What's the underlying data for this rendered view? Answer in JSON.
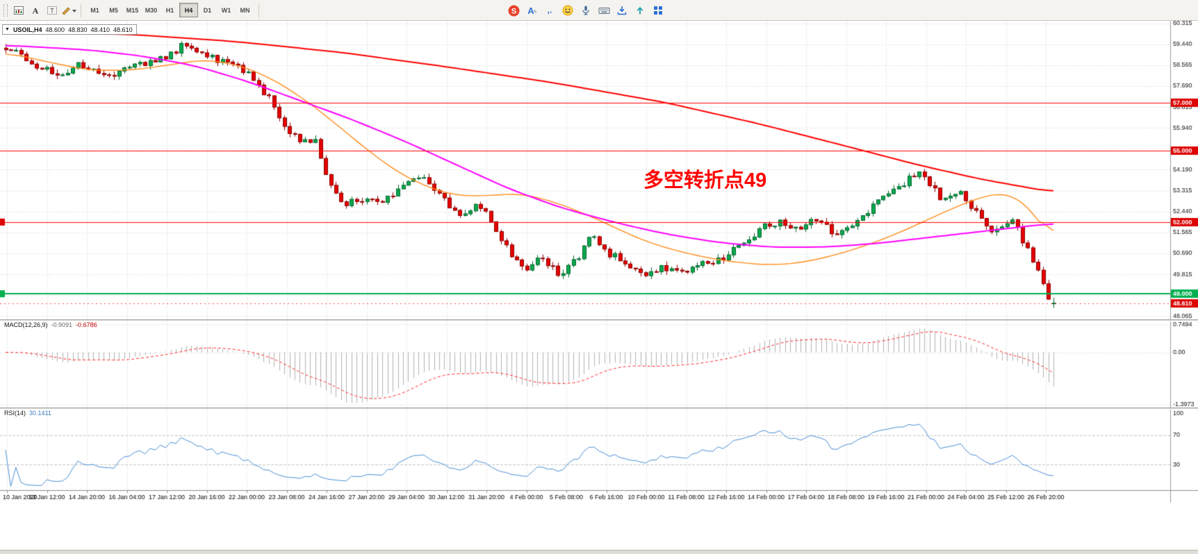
{
  "toolbar": {
    "left_icons": [
      {
        "name": "chart-window-icon"
      },
      {
        "name": "text-label-icon",
        "glyph": "A"
      },
      {
        "name": "text-box-icon",
        "glyph": "T"
      },
      {
        "name": "draw-tool-icon"
      }
    ],
    "timeframes": [
      {
        "label": "M1"
      },
      {
        "label": "M5"
      },
      {
        "label": "M15"
      },
      {
        "label": "M30"
      },
      {
        "label": "H1"
      },
      {
        "label": "H4",
        "active": true
      },
      {
        "label": "D1"
      },
      {
        "label": "W1"
      },
      {
        "label": "MN"
      }
    ],
    "ime_icons": [
      {
        "name": "ime-logo-icon",
        "glyph": "S"
      },
      {
        "name": "english-mode-icon",
        "glyph": "A"
      },
      {
        "name": "punctuation-icon",
        "glyph": ",."
      },
      {
        "name": "emoji-icon"
      },
      {
        "name": "voice-input-icon"
      },
      {
        "name": "soft-keyboard-icon"
      },
      {
        "name": "skin-download-icon"
      },
      {
        "name": "share-icon"
      },
      {
        "name": "toolbox-grid-icon"
      }
    ]
  },
  "symbol_info": {
    "collapse_glyph": "▼",
    "symbol": "USOIL,H4",
    "open": "48.600",
    "high": "48.830",
    "low": "48.410",
    "close": "48.610"
  },
  "colors": {
    "up": "#0ba94e",
    "up_border": "#03682e",
    "down": "#e60000",
    "down_border": "#8f0000",
    "grid": "#d7d7d7",
    "level_dash": "#c3c3c3",
    "scale_text": "#111111",
    "axis_border": "#8c8c8c",
    "tag_red": "#dd0202",
    "tag_green": "#00b050",
    "macd_hist": "#b2b2b2",
    "macd_signal": "#ff2a2a",
    "rsi_line": "#4a8fd6"
  },
  "chart_data": [
    {
      "type": "candlestick",
      "symbol": "USOIL",
      "timeframe": "H4",
      "title": "USOIL,H4",
      "annotation": "多空转折点49",
      "num_candles": 204,
      "last_candle": {
        "open": 48.6,
        "high": 48.83,
        "low": 48.41,
        "close": 48.61
      },
      "y_range": [
        47.93,
        60.42
      ],
      "y_ticks": [
        60.315,
        59.44,
        58.565,
        57.69,
        56.815,
        55.94,
        55.065,
        54.19,
        53.315,
        52.44,
        51.565,
        50.69,
        49.815,
        48.94,
        48.065
      ],
      "x_labels": [
        "10 Jan 2020",
        "13 Jan 12:00",
        "14 Jan 20:00",
        "16 Jan 04:00",
        "17 Jan 12:00",
        "20 Jan 16:00",
        "22 Jan 00:00",
        "23 Jan 08:00",
        "24 Jan 16:00",
        "27 Jan 20:00",
        "29 Jan 04:00",
        "30 Jan 12:00",
        "31 Jan 20:00",
        "4 Feb 00:00",
        "5 Feb 08:00",
        "6 Feb 16:00",
        "10 Feb 00:00",
        "11 Feb 08:00",
        "12 Feb 16:00",
        "14 Feb 00:00",
        "17 Feb 04:00",
        "18 Feb 08:00",
        "19 Feb 16:00",
        "21 Feb 00:00",
        "24 Feb 04:00",
        "25 Feb 12:00",
        "26 Feb 20:00"
      ],
      "price_path": [
        [
          0,
          59.3
        ],
        [
          0.016,
          58.95
        ],
        [
          0.036,
          58.35
        ],
        [
          0.056,
          58.25
        ],
        [
          0.069,
          58.55
        ],
        [
          0.089,
          58.35
        ],
        [
          0.102,
          58.1
        ],
        [
          0.118,
          58.6
        ],
        [
          0.138,
          58.7
        ],
        [
          0.155,
          59.0
        ],
        [
          0.168,
          59.35
        ],
        [
          0.185,
          59.05
        ],
        [
          0.201,
          58.8
        ],
        [
          0.214,
          58.55
        ],
        [
          0.231,
          58.3
        ],
        [
          0.244,
          57.6
        ],
        [
          0.257,
          56.8
        ],
        [
          0.271,
          55.7
        ],
        [
          0.284,
          55.3
        ],
        [
          0.294,
          55.55
        ],
        [
          0.304,
          54.3
        ],
        [
          0.313,
          53.2
        ],
        [
          0.323,
          52.75
        ],
        [
          0.337,
          52.9
        ],
        [
          0.347,
          53.05
        ],
        [
          0.36,
          52.9
        ],
        [
          0.373,
          53.3
        ],
        [
          0.386,
          53.6
        ],
        [
          0.396,
          53.9
        ],
        [
          0.406,
          53.5
        ],
        [
          0.419,
          52.9
        ],
        [
          0.429,
          52.4
        ],
        [
          0.439,
          52.3
        ],
        [
          0.449,
          52.8
        ],
        [
          0.459,
          52.3
        ],
        [
          0.469,
          51.5
        ],
        [
          0.479,
          50.9
        ],
        [
          0.489,
          50.3
        ],
        [
          0.499,
          50.1
        ],
        [
          0.509,
          50.6
        ],
        [
          0.519,
          50.2
        ],
        [
          0.528,
          49.8
        ],
        [
          0.538,
          50.1
        ],
        [
          0.548,
          50.6
        ],
        [
          0.558,
          51.4
        ],
        [
          0.566,
          51.1
        ],
        [
          0.575,
          50.7
        ],
        [
          0.585,
          50.5
        ],
        [
          0.595,
          50.2
        ],
        [
          0.605,
          49.9
        ],
        [
          0.615,
          49.8
        ],
        [
          0.624,
          50.2
        ],
        [
          0.634,
          50.0
        ],
        [
          0.644,
          49.8
        ],
        [
          0.654,
          50.0
        ],
        [
          0.664,
          50.3
        ],
        [
          0.674,
          50.2
        ],
        [
          0.684,
          50.5
        ],
        [
          0.694,
          50.8
        ],
        [
          0.704,
          51.1
        ],
        [
          0.714,
          51.4
        ],
        [
          0.723,
          51.8
        ],
        [
          0.733,
          51.9
        ],
        [
          0.743,
          52.0
        ],
        [
          0.753,
          51.7
        ],
        [
          0.763,
          51.9
        ],
        [
          0.773,
          52.1
        ],
        [
          0.783,
          51.8
        ],
        [
          0.793,
          51.5
        ],
        [
          0.803,
          51.8
        ],
        [
          0.813,
          52.1
        ],
        [
          0.823,
          52.5
        ],
        [
          0.833,
          52.9
        ],
        [
          0.843,
          53.2
        ],
        [
          0.852,
          53.5
        ],
        [
          0.862,
          53.8
        ],
        [
          0.872,
          54.1
        ],
        [
          0.882,
          53.6
        ],
        [
          0.892,
          53.0
        ],
        [
          0.902,
          53.2
        ],
        [
          0.912,
          53.35
        ],
        [
          0.922,
          52.6
        ],
        [
          0.932,
          52.1
        ],
        [
          0.942,
          51.6
        ],
        [
          0.952,
          51.9
        ],
        [
          0.962,
          52.0
        ],
        [
          0.971,
          51.2
        ],
        [
          0.981,
          50.3
        ],
        [
          0.988,
          49.6
        ],
        [
          0.994,
          48.95
        ],
        [
          1,
          48.61
        ]
      ],
      "overlays": [
        {
          "name": "fast-ma",
          "color": "#ff8c1a",
          "width": 1.4,
          "path": [
            [
              0,
              59.1
            ],
            [
              0.04,
              58.7
            ],
            [
              0.08,
              58.35
            ],
            [
              0.12,
              58.35
            ],
            [
              0.16,
              58.6
            ],
            [
              0.19,
              58.8
            ],
            [
              0.22,
              58.6
            ],
            [
              0.25,
              58.1
            ],
            [
              0.28,
              57.3
            ],
            [
              0.31,
              56.3
            ],
            [
              0.34,
              55.2
            ],
            [
              0.37,
              54.2
            ],
            [
              0.4,
              53.5
            ],
            [
              0.43,
              53.1
            ],
            [
              0.46,
              53.1
            ],
            [
              0.49,
              53.2
            ],
            [
              0.52,
              52.9
            ],
            [
              0.55,
              52.4
            ],
            [
              0.58,
              51.8
            ],
            [
              0.61,
              51.2
            ],
            [
              0.64,
              50.8
            ],
            [
              0.67,
              50.5
            ],
            [
              0.7,
              50.3
            ],
            [
              0.73,
              50.2
            ],
            [
              0.76,
              50.3
            ],
            [
              0.79,
              50.6
            ],
            [
              0.82,
              51.0
            ],
            [
              0.85,
              51.5
            ],
            [
              0.88,
              52.1
            ],
            [
              0.91,
              52.7
            ],
            [
              0.935,
              53.1
            ],
            [
              0.955,
              53.25
            ],
            [
              0.97,
              52.9
            ],
            [
              0.985,
              52.2
            ],
            [
              1,
              51.1
            ]
          ]
        },
        {
          "name": "mid-ma",
          "color": "#ff00ff",
          "width": 2,
          "path": [
            [
              0,
              59.4
            ],
            [
              0.08,
              59.2
            ],
            [
              0.13,
              58.95
            ],
            [
              0.18,
              58.55
            ],
            [
              0.23,
              57.9
            ],
            [
              0.28,
              57.1
            ],
            [
              0.33,
              56.3
            ],
            [
              0.38,
              55.4
            ],
            [
              0.43,
              54.4
            ],
            [
              0.48,
              53.4
            ],
            [
              0.53,
              52.6
            ],
            [
              0.58,
              52.0
            ],
            [
              0.63,
              51.5
            ],
            [
              0.68,
              51.15
            ],
            [
              0.73,
              50.95
            ],
            [
              0.78,
              50.95
            ],
            [
              0.83,
              51.1
            ],
            [
              0.88,
              51.35
            ],
            [
              0.93,
              51.6
            ],
            [
              1,
              51.95
            ]
          ]
        },
        {
          "name": "slow-ma",
          "color": "#ff0000",
          "width": 2,
          "path": [
            [
              0,
              59.97
            ],
            [
              0.12,
              59.85
            ],
            [
              0.22,
              59.55
            ],
            [
              0.32,
              59.1
            ],
            [
              0.42,
              58.5
            ],
            [
              0.52,
              57.85
            ],
            [
              0.63,
              57.0
            ],
            [
              0.72,
              56.1
            ],
            [
              0.8,
              55.2
            ],
            [
              0.87,
              54.4
            ],
            [
              0.93,
              53.8
            ],
            [
              1,
              53.25
            ]
          ]
        }
      ],
      "hlines": [
        {
          "price": 57.0,
          "label": "57.000",
          "color": "#ff0000",
          "width": 1
        },
        {
          "price": 55.0,
          "label": "55.000",
          "color": "#ff0000",
          "width": 1
        },
        {
          "price": 52.0,
          "label": "52.000",
          "color": "#ff0000",
          "width": 1
        },
        {
          "price": 49.0,
          "label": "49.000",
          "color": "#00b050",
          "width": 2
        }
      ],
      "current_price": {
        "value": 48.61,
        "label": "48.610"
      }
    },
    {
      "type": "macd",
      "name": "MACD(12,26,9)",
      "params": [
        12,
        26,
        9
      ],
      "values": [
        -0.9091,
        -0.6786
      ],
      "value_labels": [
        "-0.9091",
        "-0.6786"
      ],
      "y_range": [
        -1.48,
        0.83
      ],
      "y_ticks": [
        {
          "v": 0.7494,
          "label": "0.7494"
        },
        {
          "v": 0,
          "label": "0.00"
        },
        {
          "v": -1.3973,
          "label": "-1.3973"
        }
      ]
    },
    {
      "type": "rsi",
      "name": "RSI(14)",
      "params": [
        14
      ],
      "value": 30.1411,
      "value_label": "30.1411",
      "levels": [
        70,
        30
      ],
      "y_range": [
        -5,
        105
      ],
      "y_ticks": [
        {
          "v": 100,
          "label": "100"
        },
        {
          "v": 70,
          "label": "70"
        },
        {
          "v": 30,
          "label": "30"
        }
      ]
    }
  ]
}
